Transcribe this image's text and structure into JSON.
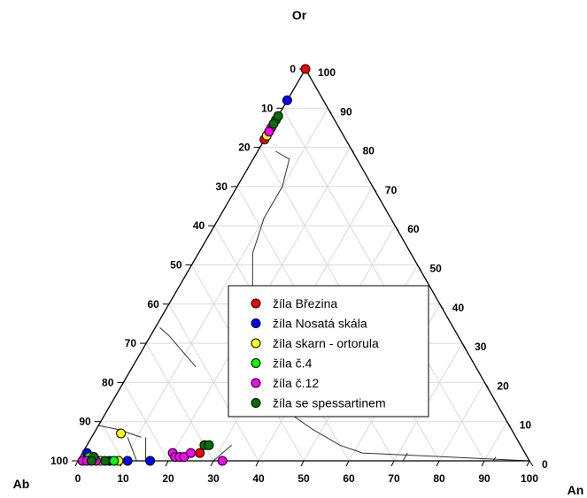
{
  "chart_data": {
    "type": "scatter",
    "subtype": "ternary",
    "corners": {
      "top": "Or",
      "left": "Ab",
      "right": "An"
    },
    "axis_ticks": {
      "bottom_An": [
        "0",
        "10",
        "20",
        "30",
        "40",
        "50",
        "60",
        "70",
        "80",
        "90",
        "100"
      ],
      "left_Ab": [
        "100",
        "90",
        "80",
        "70",
        "60",
        "50",
        "40",
        "30",
        "20",
        "10",
        "0"
      ],
      "right_Or": [
        "0",
        "10",
        "20",
        "30",
        "40",
        "50",
        "60",
        "70",
        "80",
        "90",
        "100"
      ]
    },
    "grid": true,
    "legend_position": "center",
    "series": [
      {
        "name": "žíla Březina",
        "color": "#ff0000",
        "points": [
          {
            "Or": 100,
            "An": 0
          },
          {
            "Or": 82,
            "An": 0
          },
          {
            "Or": 2,
            "An": 26
          }
        ]
      },
      {
        "name": "žíla Nosatá skála",
        "color": "#0000ff",
        "points": [
          {
            "Or": 92,
            "An": 0
          },
          {
            "Or": 1,
            "An": 2
          },
          {
            "Or": 0,
            "An": 7
          },
          {
            "Or": 0,
            "An": 11
          },
          {
            "Or": 0,
            "An": 16
          },
          {
            "Or": 2,
            "An": 1
          }
        ]
      },
      {
        "name": "žíla skarn - ortorula",
        "color": "#ffff00",
        "points": [
          {
            "Or": 83,
            "An": 0
          },
          {
            "Or": 7,
            "An": 6
          },
          {
            "Or": 0,
            "An": 5
          },
          {
            "Or": 0,
            "An": 9
          }
        ]
      },
      {
        "name": "žíla č.4",
        "color": "#00ff00",
        "points": [
          {
            "Or": 0,
            "An": 8
          },
          {
            "Or": 1,
            "An": 2
          }
        ]
      },
      {
        "name": "žíla č.12",
        "color": "#ff00ff",
        "points": [
          {
            "Or": 85,
            "An": 0
          },
          {
            "Or": 84,
            "An": 0
          },
          {
            "Or": 0,
            "An": 1
          },
          {
            "Or": 0,
            "An": 4
          },
          {
            "Or": 1,
            "An": 3
          },
          {
            "Or": 2,
            "An": 20
          },
          {
            "Or": 1,
            "An": 21
          },
          {
            "Or": 1,
            "An": 22
          },
          {
            "Or": 1,
            "An": 23
          },
          {
            "Or": 2,
            "An": 24
          },
          {
            "Or": 0,
            "An": 32
          },
          {
            "Or": 0,
            "An": 2
          }
        ]
      },
      {
        "name": "žíla se spessartinem",
        "color": "#007000",
        "points": [
          {
            "Or": 87,
            "An": 0
          },
          {
            "Or": 88,
            "An": 0
          },
          {
            "Or": 86,
            "An": 0
          },
          {
            "Or": 4,
            "An": 26
          },
          {
            "Or": 4,
            "An": 27
          },
          {
            "Or": 1,
            "An": 3
          },
          {
            "Or": 0,
            "An": 3
          },
          {
            "Or": 0,
            "An": 6
          }
        ]
      }
    ]
  }
}
